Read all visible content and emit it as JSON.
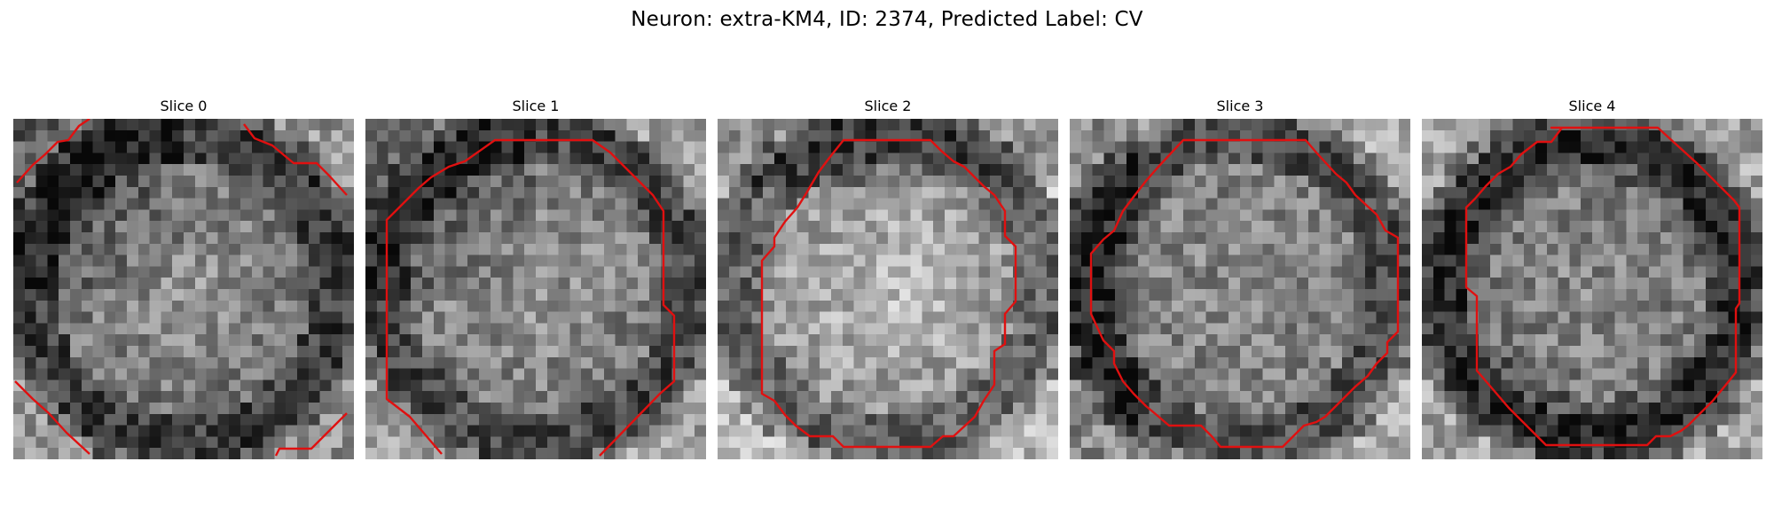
{
  "figure": {
    "title": "Neuron: extra-KM4, ID: 2374, Predicted Label: CV",
    "contour_color": "#e01010"
  },
  "slices": [
    {
      "label": "Slice 0",
      "mean_brightness": 0.48,
      "center_bias": 0.18,
      "edge_dark": "top-left"
    },
    {
      "label": "Slice 1",
      "mean_brightness": 0.5,
      "center_bias": 0.15,
      "edge_dark": "top-left"
    },
    {
      "label": "Slice 2",
      "mean_brightness": 0.62,
      "center_bias": 0.2,
      "edge_dark": "top"
    },
    {
      "label": "Slice 3",
      "mean_brightness": 0.5,
      "center_bias": 0.06,
      "edge_dark": "left"
    },
    {
      "label": "Slice 4",
      "mean_brightness": 0.48,
      "center_bias": 0.1,
      "edge_dark": "ring"
    }
  ]
}
